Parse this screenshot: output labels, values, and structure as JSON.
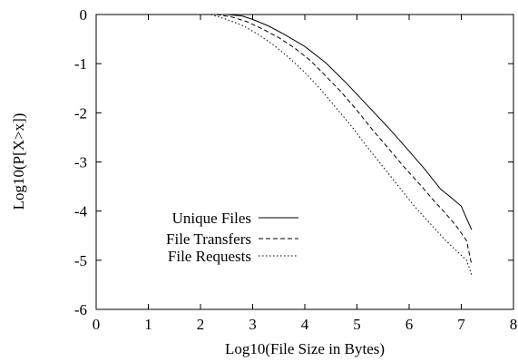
{
  "chart_data": {
    "type": "line",
    "title": "",
    "xlabel": "Log10(File Size in Bytes)",
    "ylabel": "Log10(P[X>x])",
    "xlim": [
      0,
      8
    ],
    "ylim": [
      -6,
      0
    ],
    "xticks": [
      "0",
      "1",
      "2",
      "3",
      "4",
      "5",
      "6",
      "7",
      "8"
    ],
    "yticks": [
      "0",
      "-1",
      "-2",
      "-3",
      "-4",
      "-5",
      "-6"
    ],
    "grid": false,
    "legend_position": "lower-left",
    "series": [
      {
        "name": "Unique Files",
        "style": "solid",
        "x": [
          2.5,
          2.8,
          3.0,
          3.3,
          3.6,
          4.0,
          4.4,
          4.8,
          5.2,
          5.6,
          6.0,
          6.3,
          6.6,
          6.8,
          7.0,
          7.1,
          7.2
        ],
        "y": [
          0.0,
          -0.03,
          -0.1,
          -0.23,
          -0.4,
          -0.65,
          -0.98,
          -1.4,
          -1.85,
          -2.3,
          -2.78,
          -3.15,
          -3.55,
          -3.72,
          -3.9,
          -4.15,
          -4.38
        ]
      },
      {
        "name": "File Transfers",
        "style": "dashed",
        "x": [
          2.3,
          2.6,
          2.9,
          3.2,
          3.5,
          3.8,
          4.1,
          4.4,
          4.7,
          5.0,
          5.3,
          5.6,
          5.9,
          6.2,
          6.5,
          6.7,
          6.9,
          7.0,
          7.1,
          7.2
        ],
        "y": [
          0.0,
          -0.05,
          -0.15,
          -0.3,
          -0.47,
          -0.68,
          -0.93,
          -1.25,
          -1.58,
          -1.95,
          -2.35,
          -2.72,
          -3.1,
          -3.45,
          -3.82,
          -4.05,
          -4.3,
          -4.45,
          -4.6,
          -5.1
        ]
      },
      {
        "name": "File Requests",
        "style": "dotted",
        "x": [
          2.2,
          2.5,
          2.8,
          3.1,
          3.4,
          3.7,
          4.0,
          4.3,
          4.6,
          4.9,
          5.2,
          5.5,
          5.8,
          6.1,
          6.4,
          6.7,
          6.9,
          7.0,
          7.1,
          7.2
        ],
        "y": [
          0.0,
          -0.1,
          -0.22,
          -0.4,
          -0.62,
          -0.88,
          -1.18,
          -1.52,
          -1.9,
          -2.28,
          -2.7,
          -3.1,
          -3.5,
          -3.9,
          -4.25,
          -4.6,
          -4.8,
          -4.9,
          -5.0,
          -5.3
        ]
      }
    ]
  }
}
